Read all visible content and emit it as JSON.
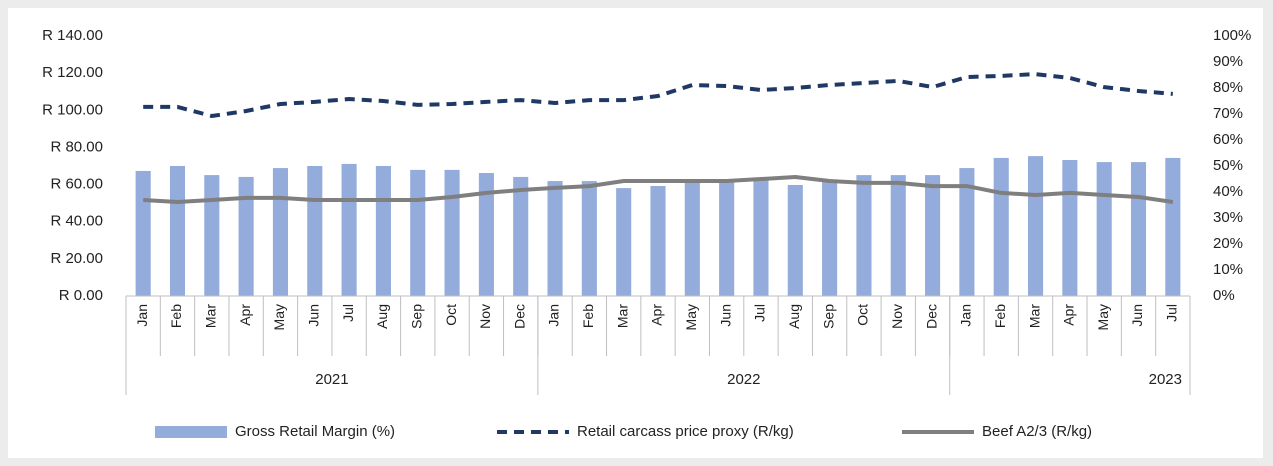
{
  "chart_data": {
    "type": "bar_line",
    "groups": [
      {
        "label": "2021",
        "categories": [
          "Jan",
          "Feb",
          "Mar",
          "Apr",
          "May",
          "Jun",
          "Jul",
          "Aug",
          "Sep",
          "Oct",
          "Nov",
          "Dec"
        ]
      },
      {
        "label": "2022",
        "categories": [
          "Jan",
          "Feb",
          "Mar",
          "Apr",
          "May",
          "Jun",
          "Jul",
          "Aug",
          "Sep",
          "Oct",
          "Nov",
          "Dec"
        ]
      },
      {
        "label": "2023",
        "categories": [
          "Jan",
          "Feb",
          "Mar",
          "Apr",
          "May",
          "Jun",
          "Jul"
        ]
      }
    ],
    "series": [
      {
        "name": "Gross Retail Margin (%)",
        "type": "bar",
        "axis": "y2",
        "color": "#94acdb",
        "values": [
          48.1,
          50,
          46.5,
          45.8,
          49.2,
          50,
          50.8,
          50,
          48.5,
          48.5,
          47.3,
          45.8,
          44.2,
          44.2,
          41.5,
          42.3,
          44.6,
          44.6,
          44.6,
          42.7,
          44.6,
          46.5,
          46.5,
          46.5,
          49.2,
          53.1,
          53.8,
          52.3,
          51.5,
          51.5,
          53.1
        ]
      },
      {
        "name": "Retail carcass price proxy (R/kg)",
        "type": "line",
        "dash": true,
        "color": "#1f3864",
        "values": [
          101.8,
          101.8,
          96.9,
          99.6,
          103.4,
          104.5,
          106.1,
          105,
          102.9,
          103.4,
          104.5,
          105.5,
          103.9,
          105.5,
          105.5,
          107.7,
          113.6,
          113.1,
          110.9,
          112,
          113.6,
          114.7,
          115.8,
          112.5,
          117.9,
          118.5,
          119.5,
          117.4,
          112.5,
          110.4,
          108.8
        ]
      },
      {
        "name": "Beef A2/3 (R/kg)",
        "type": "line",
        "dash": false,
        "color": "#7f7f7f",
        "values": [
          51.7,
          50.6,
          51.7,
          52.8,
          52.8,
          51.7,
          51.7,
          51.7,
          51.7,
          53.3,
          55.5,
          57.1,
          58.2,
          59.2,
          61.9,
          61.9,
          61.9,
          61.9,
          63,
          64.1,
          61.9,
          60.9,
          60.9,
          59.2,
          59.2,
          55.5,
          54.4,
          55.5,
          54.4,
          53.3,
          50.6
        ]
      }
    ],
    "ylim": [
      0,
      140
    ],
    "yticks": [
      {
        "value": 0,
        "label": "R 0.00"
      },
      {
        "value": 20,
        "label": "R 20.00"
      },
      {
        "value": 40,
        "label": "R 40.00"
      },
      {
        "value": 60,
        "label": "R 60.00"
      },
      {
        "value": 80,
        "label": "R 80.00"
      },
      {
        "value": 100,
        "label": "R 100.00"
      },
      {
        "value": 120,
        "label": "R 120.00"
      },
      {
        "value": 140,
        "label": "R 140.00"
      }
    ],
    "y2lim": [
      0,
      100
    ],
    "y2ticks": [
      {
        "value": 0,
        "label": "0%"
      },
      {
        "value": 10,
        "label": "10%"
      },
      {
        "value": 20,
        "label": "20%"
      },
      {
        "value": 30,
        "label": "30%"
      },
      {
        "value": 40,
        "label": "40%"
      },
      {
        "value": 50,
        "label": "50%"
      },
      {
        "value": 60,
        "label": "60%"
      },
      {
        "value": 70,
        "label": "70%"
      },
      {
        "value": 80,
        "label": "80%"
      },
      {
        "value": 90,
        "label": "90%"
      },
      {
        "value": 100,
        "label": "100%"
      }
    ],
    "legend": "bottom"
  }
}
